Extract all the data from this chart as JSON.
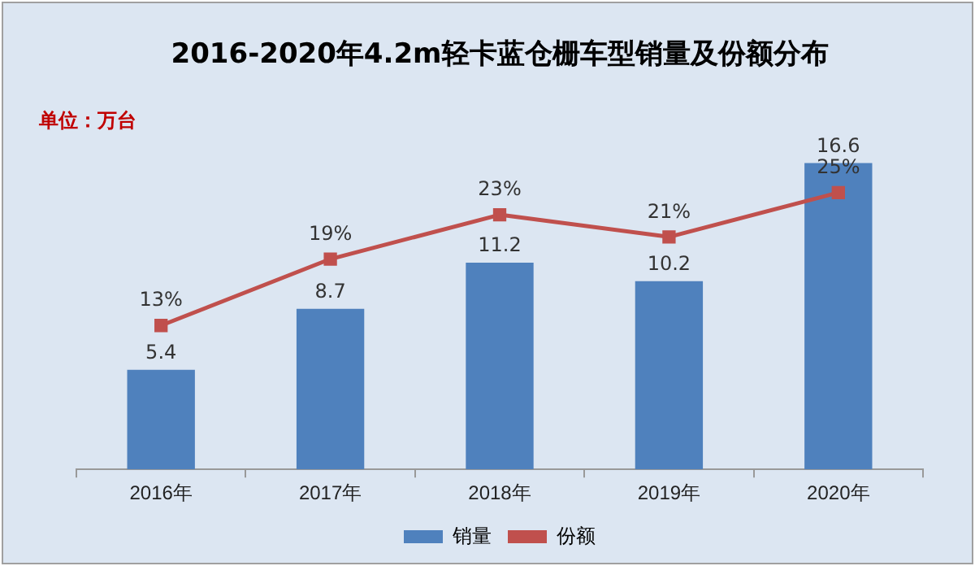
{
  "chart_data": {
    "type": "bar",
    "title": "2016-2020年4.2m轻卡蓝仓栅车型销量及份额分布",
    "annotations": [
      "单位：万台"
    ],
    "categories": [
      "2016年",
      "2017年",
      "2018年",
      "2019年",
      "2020年"
    ],
    "series": [
      {
        "name": "销量",
        "color": "#4f81bd",
        "values": [
          5.4,
          8.7,
          11.2,
          10.2,
          16.6
        ],
        "value_labels": [
          "5.4",
          "8.7",
          "11.2",
          "10.2",
          "16.6"
        ]
      },
      {
        "name": "份额",
        "type": "line",
        "axis": "y2",
        "color": "#c0504d",
        "values": [
          13,
          19,
          23,
          21,
          25
        ],
        "value_labels": [
          "13%",
          "19%",
          "23%",
          "21%",
          "25%"
        ],
        "marker": "square"
      }
    ],
    "legend": "bottom",
    "grid": false
  }
}
